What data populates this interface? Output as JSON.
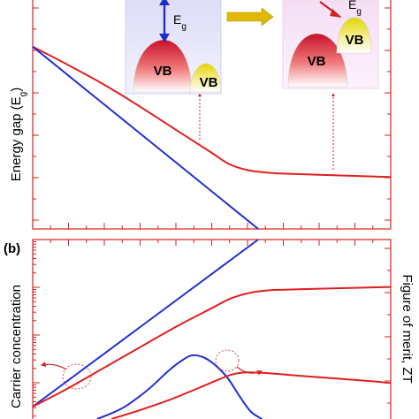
{
  "colors": {
    "axis": "#dd1f1f",
    "red_series": "#e01f1f",
    "blue_series": "#1f2fd6",
    "inset_a_bg": "#e8e8fb",
    "inset_b_bg": "#f9eafa",
    "arrow_gold": "#e0b800"
  },
  "chart_data": [
    {
      "panel": "a",
      "type": "line",
      "title": "",
      "xlabel": "",
      "ylabel": "Energy gap (Eg)",
      "ylabel_main": "Energy gap (E",
      "ylabel_sub": "g",
      "ylabel_end": ")",
      "xlim": [
        0,
        100
      ],
      "ylim": [
        0,
        100
      ],
      "grid": false,
      "series": [
        {
          "color": "red",
          "x": [
            0,
            10,
            20,
            30,
            40,
            50,
            55,
            60,
            65,
            70,
            80,
            90,
            100
          ],
          "y": [
            79,
            71,
            62.5,
            53,
            43,
            33,
            28,
            25.5,
            24.5,
            24,
            23.5,
            23,
            22.5
          ]
        },
        {
          "color": "blue",
          "x": [
            0,
            63
          ],
          "y": [
            79,
            0
          ]
        }
      ],
      "insets": [
        {
          "bands": [
            "VB",
            "VB"
          ],
          "gap_label": "E",
          "gap_sub": "g"
        },
        {
          "bands": [
            "VB",
            "VB"
          ],
          "gap_label": "E",
          "gap_sub": "g"
        }
      ]
    },
    {
      "panel": "b",
      "panel_label": "(b)",
      "type": "line",
      "title": "",
      "xlabel": "",
      "ylabel_left": "Carrier concentration",
      "ylabel_right": "Figure of merit, ZT",
      "xlim": [
        0,
        100
      ],
      "ylim": [
        0,
        100
      ],
      "grid": false,
      "series": [
        {
          "axis": "left",
          "color": "blue",
          "x": [
            0,
            63
          ],
          "y": [
            10,
            100
          ]
        },
        {
          "axis": "left",
          "color": "red",
          "x": [
            0,
            10,
            20,
            30,
            40,
            50,
            55,
            60,
            65,
            70,
            80,
            90,
            100
          ],
          "y": [
            10,
            20,
            31,
            42,
            53,
            63,
            68,
            71,
            72.5,
            73,
            73.5,
            74,
            74.5
          ]
        },
        {
          "axis": "right",
          "color": "blue",
          "x": [
            18,
            25,
            32,
            38,
            42,
            45,
            49,
            54,
            58,
            61,
            64
          ],
          "y": [
            0,
            6,
            16,
            27,
            33,
            35.5,
            33,
            24,
            12,
            4,
            0
          ]
        },
        {
          "axis": "right",
          "color": "red",
          "x": [
            22,
            30,
            38,
            46,
            52,
            56,
            60,
            66,
            75,
            85,
            95,
            100
          ],
          "y": [
            0,
            5,
            10.5,
            17,
            22,
            25,
            26,
            25.5,
            24,
            22.5,
            21,
            20
          ]
        }
      ]
    }
  ]
}
